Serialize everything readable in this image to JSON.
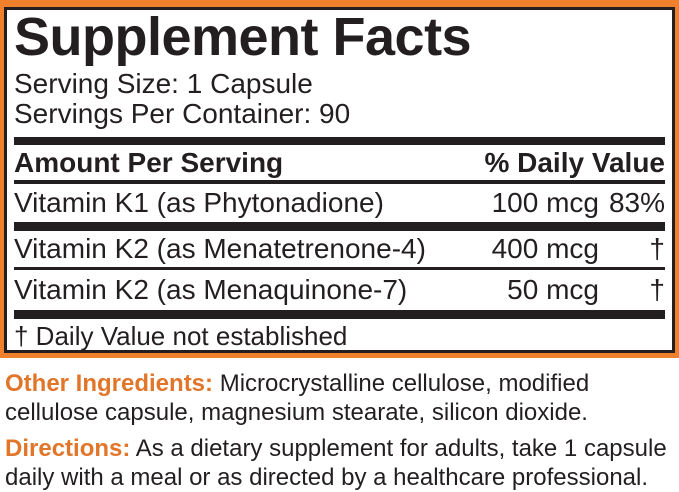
{
  "panel": {
    "title": "Supplement Facts",
    "serving_size": "Serving Size: 1 Capsule",
    "servings_per_container": "Servings Per Container: 90",
    "header": {
      "amount_label": "Amount Per Serving",
      "dv_label": "% Daily Value"
    },
    "rows": [
      {
        "name": "Vitamin K1 (as Phytonadione)",
        "amount": "100 mcg",
        "dv": "83%"
      },
      {
        "name": "Vitamin K2 (as Menatetrenone-4)",
        "amount": "400 mcg",
        "dv": "†"
      },
      {
        "name": "Vitamin K2 (as Menaquinone-7)",
        "amount": "50 mcg",
        "dv": "†"
      }
    ],
    "footnote": "† Daily Value not established"
  },
  "other_ingredients": {
    "label": "Other Ingredients:",
    "text": "Microcrystalline cellulose, modified cellulose capsule, magnesium stearate, silicon dioxide."
  },
  "directions": {
    "label": "Directions:",
    "text": "As a dietary supplement for adults, take 1 capsule daily with a meal or as directed by a healthcare professional."
  },
  "colors": {
    "border_orange": "#F0812C",
    "label_orange": "#E1762B",
    "text_black": "#231F20"
  }
}
